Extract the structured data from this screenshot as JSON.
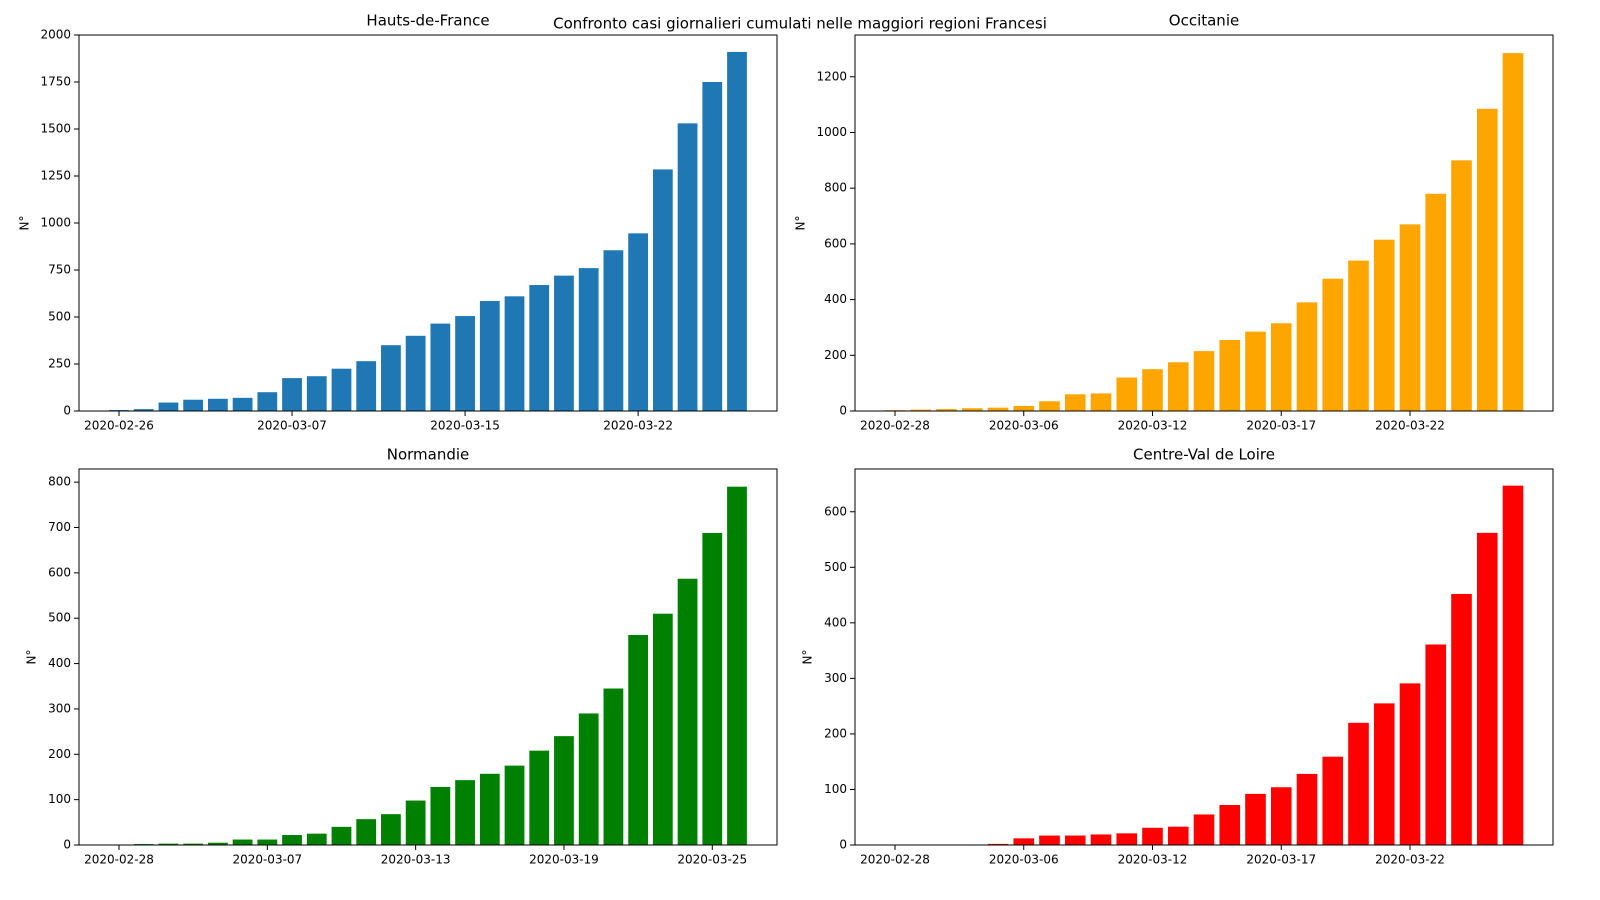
{
  "title": "Confronto casi giornalieri cumulati nelle maggiori regioni Francesi",
  "chart_data": [
    {
      "type": "bar",
      "title": "Hauts-de-France",
      "ylabel": "N°",
      "color": "#1f77b4",
      "categories": [
        "2020-02-26",
        null,
        null,
        null,
        null,
        null,
        null,
        "2020-03-07",
        null,
        null,
        null,
        null,
        null,
        null,
        "2020-03-15",
        null,
        null,
        null,
        null,
        null,
        null,
        "2020-03-22",
        null,
        null,
        null,
        null
      ],
      "values": [
        5,
        10,
        45,
        60,
        65,
        70,
        100,
        175,
        185,
        225,
        265,
        350,
        400,
        465,
        505,
        585,
        610,
        670,
        720,
        760,
        855,
        945,
        1285,
        1530,
        1750,
        1910
      ],
      "ylim": [
        0,
        2000
      ],
      "yticks": [
        0,
        250,
        500,
        750,
        1000,
        1250,
        1500,
        1750,
        2000
      ]
    },
    {
      "type": "bar",
      "title": "Occitanie",
      "ylabel": "N°",
      "color": "#ffa500",
      "categories": [
        "2020-02-28",
        null,
        null,
        null,
        null,
        "2020-03-06",
        null,
        null,
        null,
        null,
        "2020-03-12",
        null,
        null,
        null,
        null,
        "2020-03-17",
        null,
        null,
        null,
        null,
        "2020-03-22",
        null,
        null,
        null,
        null
      ],
      "values": [
        3,
        5,
        7,
        10,
        12,
        18,
        35,
        60,
        63,
        120,
        150,
        175,
        215,
        255,
        285,
        315,
        390,
        475,
        540,
        615,
        670,
        780,
        900,
        1085,
        1285
      ],
      "ylim": [
        0,
        1350
      ],
      "yticks": [
        0,
        200,
        400,
        600,
        800,
        1000,
        1200
      ]
    },
    {
      "type": "bar",
      "title": "Normandie",
      "ylabel": "N°",
      "color": "#008000",
      "categories": [
        "2020-02-28",
        null,
        null,
        null,
        null,
        null,
        "2020-03-07",
        null,
        null,
        null,
        null,
        null,
        "2020-03-13",
        null,
        null,
        null,
        null,
        null,
        "2020-03-19",
        null,
        null,
        null,
        null,
        null,
        "2020-03-25",
        null
      ],
      "values": [
        1,
        2,
        3,
        3,
        5,
        12,
        12,
        22,
        25,
        40,
        57,
        68,
        98,
        128,
        143,
        157,
        175,
        208,
        240,
        290,
        345,
        463,
        510,
        587,
        688,
        790
      ],
      "ylim": [
        0,
        829
      ],
      "yticks": [
        0,
        100,
        200,
        300,
        400,
        500,
        600,
        700,
        800
      ]
    },
    {
      "type": "bar",
      "title": "Centre-Val de Loire",
      "ylabel": "N°",
      "color": "#ff0000",
      "categories": [
        "2020-02-28",
        null,
        null,
        null,
        null,
        "2020-03-06",
        null,
        null,
        null,
        null,
        "2020-03-12",
        null,
        null,
        null,
        null,
        "2020-03-17",
        null,
        null,
        null,
        null,
        "2020-03-22",
        null,
        null,
        null,
        null
      ],
      "values": [
        0,
        0,
        0,
        0,
        2,
        12,
        17,
        17,
        19,
        21,
        31,
        33,
        55,
        72,
        92,
        104,
        128,
        159,
        220,
        255,
        291,
        361,
        452,
        562,
        647
      ],
      "ylim": [
        0,
        677
      ],
      "yticks": [
        0,
        100,
        200,
        300,
        400,
        500,
        600
      ]
    }
  ]
}
